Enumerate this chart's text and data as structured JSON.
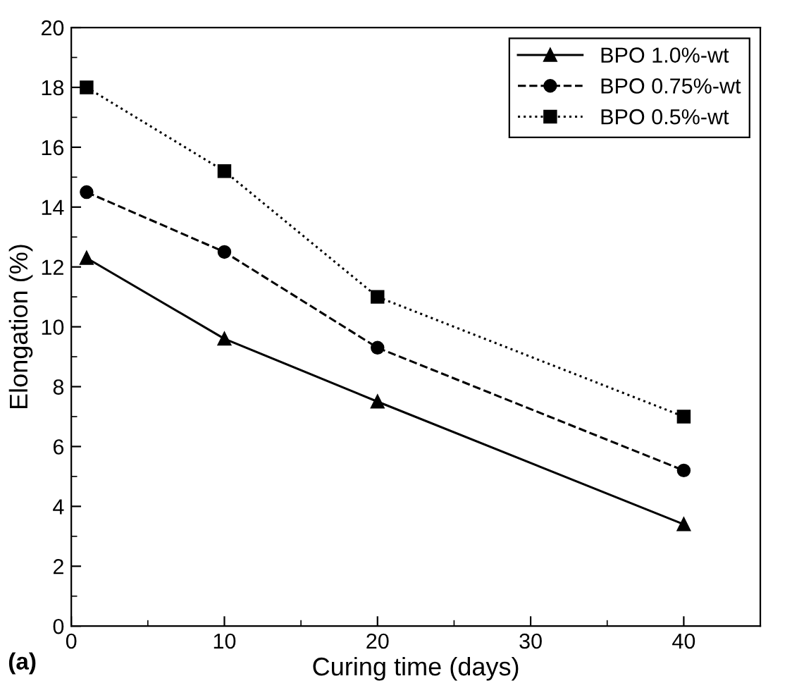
{
  "chart_data": {
    "type": "line",
    "xlabel": "Curing time (days)",
    "ylabel": "Elongation (%)",
    "x": [
      1,
      10,
      20,
      40
    ],
    "series": [
      {
        "name": "BPO 1.0%-wt",
        "color": "#000000",
        "values": [
          12.3,
          9.6,
          7.5,
          3.4
        ],
        "marker": "triangle",
        "line_style": "solid"
      },
      {
        "name": "BPO 0.75%-wt",
        "color": "#000000",
        "values": [
          14.5,
          12.5,
          9.3,
          5.2
        ],
        "marker": "circle",
        "line_style": "dashed"
      },
      {
        "name": "BPO 0.5%-wt",
        "color": "#000000",
        "values": [
          18,
          15.2,
          11,
          7
        ],
        "marker": "square",
        "line_style": "dotted"
      }
    ],
    "xlim": [
      0,
      45
    ],
    "xticks": [
      0,
      10,
      20,
      30,
      40
    ],
    "ylim": [
      0,
      20
    ],
    "yticks": [
      0,
      2,
      4,
      6,
      8,
      10,
      12,
      14,
      16,
      18,
      20
    ],
    "grid": false,
    "legend": "top right",
    "annotations": [
      "(a)"
    ]
  }
}
